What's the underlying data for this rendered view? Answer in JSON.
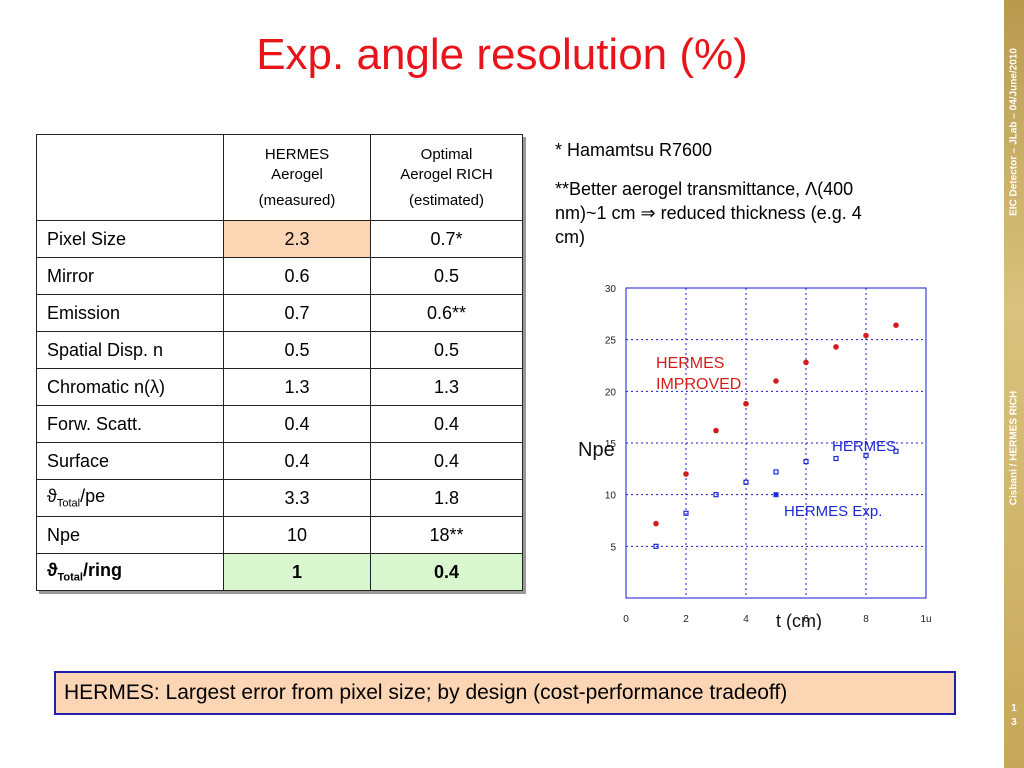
{
  "slide": {
    "title": "Exp. angle resolution (%)",
    "side_label_top": "EIC Detector – JLab – 04/June/2010",
    "side_label_bottom": "Cisbani / HERMES RICH",
    "page_number_line1": "1",
    "page_number_line2": "3"
  },
  "table": {
    "header": {
      "col1_line1": "HERMES",
      "col1_line2": "Aerogel",
      "col1_line3": "(measured)",
      "col2_line1": "Optimal",
      "col2_line2": "Aerogel RICH",
      "col2_line3": "(estimated)"
    },
    "rows": [
      {
        "label": "Pixel Size",
        "hermes": "2.3",
        "optimal": "0.7*"
      },
      {
        "label": "Mirror",
        "hermes": "0.6",
        "optimal": "0.5"
      },
      {
        "label": "Emission",
        "hermes": "0.7",
        "optimal": "0.6**"
      },
      {
        "label": "Spatial Disp. n",
        "hermes": "0.5",
        "optimal": "0.5"
      },
      {
        "label_pre": "Chromatic n(",
        "label_sym": "λ",
        "label_post": ")",
        "hermes": "1.3",
        "optimal": "1.3"
      },
      {
        "label": "Forw. Scatt.",
        "hermes": "0.4",
        "optimal": "0.4"
      },
      {
        "label": "Surface",
        "hermes": "0.4",
        "optimal": "0.4"
      },
      {
        "label_sym": "ϑ",
        "label_sub": "Total",
        "label_post": "/pe",
        "hermes": "3.3",
        "optimal": "1.8"
      },
      {
        "label": "Npe",
        "hermes": "10",
        "optimal": "18**"
      },
      {
        "label_sym": "ϑ",
        "label_sub": "Total",
        "label_post": "/ring",
        "hermes": "1",
        "optimal": "0.4"
      }
    ]
  },
  "notes": {
    "note1": "* Hamamtsu R7600",
    "note2_line1": "**Better aerogel transmittance, Λ(400",
    "note2_line2": "nm)~1 cm ⇒ reduced thickness (e.g. 4",
    "note2_line3": "cm)"
  },
  "footer": {
    "text": "HERMES: Largest error from pixel size; by design (cost-performance tradeoff)"
  },
  "chart_data": {
    "type": "scatter",
    "xlabel": "t (cm)",
    "ylabel": "Npe",
    "xlim": [
      0,
      10
    ],
    "ylim": [
      0,
      30
    ],
    "x_ticks": [
      "0",
      "2",
      "4",
      "6",
      "8",
      "1u"
    ],
    "y_ticks": [
      "5",
      "10",
      "15",
      "20",
      "25",
      "30"
    ],
    "grid": true,
    "series": [
      {
        "name": "HERMES IMPROVED",
        "color": "#d41c1c",
        "x": [
          1,
          2,
          3,
          4,
          5,
          6,
          7,
          8,
          9
        ],
        "y": [
          7.2,
          12.0,
          16.2,
          18.8,
          21.0,
          22.8,
          24.3,
          25.4,
          26.4
        ]
      },
      {
        "name": "HERMES",
        "color": "#1c2ad4",
        "x": [
          1,
          2,
          3,
          4,
          5,
          6,
          7,
          8,
          9
        ],
        "y": [
          5.0,
          8.2,
          10.0,
          11.2,
          12.2,
          13.2,
          13.5,
          13.8,
          14.2
        ]
      },
      {
        "name": "HERMES Exp.",
        "color": "#1c2ad4",
        "x": [
          5
        ],
        "y": [
          10.0
        ]
      }
    ],
    "annotations": [
      "HERMES IMPROVED",
      "HERMES",
      "HERMES Exp."
    ]
  }
}
